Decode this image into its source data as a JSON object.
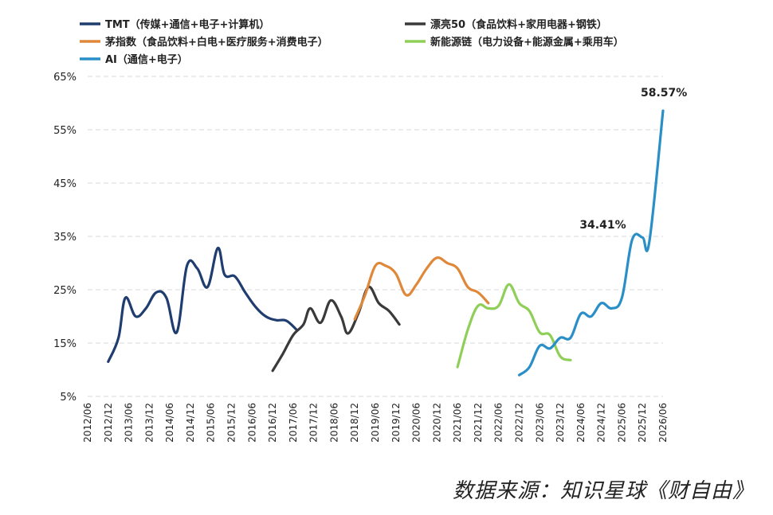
{
  "chart_data": {
    "type": "line",
    "ylim": [
      5,
      65
    ],
    "yticks": [
      "5%",
      "15%",
      "25%",
      "35%",
      "45%",
      "55%",
      "65%"
    ],
    "ytick_values": [
      5,
      15,
      25,
      35,
      45,
      55,
      65
    ],
    "x_categories": [
      "2012/06",
      "2012/12",
      "2013/06",
      "2013/12",
      "2014/06",
      "2014/12",
      "2015/06",
      "2015/12",
      "2016/06",
      "2016/12",
      "2017/06",
      "2017/12",
      "2018/06",
      "2018/12",
      "2019/06",
      "2019/12",
      "2020/06",
      "2020/12",
      "2021/06",
      "2021/12",
      "2022/06",
      "2022/12",
      "2023/06",
      "2023/12",
      "2024/06",
      "2024/12",
      "2025/06",
      "2025/12",
      "2026/06"
    ],
    "grid": "horizontal-dashed",
    "legend_position": "top",
    "series": [
      {
        "name": "TMT（传媒+通信+电子+计算机）",
        "color": "#1f3d6e",
        "points": [
          [
            "2012/12",
            11.5
          ],
          [
            "2013/03",
            16
          ],
          [
            "2013/05",
            23.5
          ],
          [
            "2013/08",
            20
          ],
          [
            "2013/11",
            21.5
          ],
          [
            "2014/02",
            24.5
          ],
          [
            "2014/05",
            23.5
          ],
          [
            "2014/08",
            17
          ],
          [
            "2014/11",
            29.5
          ],
          [
            "2015/02",
            29
          ],
          [
            "2015/05",
            25.5
          ],
          [
            "2015/08",
            32.8
          ],
          [
            "2015/10",
            27.8
          ],
          [
            "2016/01",
            27.5
          ],
          [
            "2016/04",
            24.5
          ],
          [
            "2016/07",
            21.8
          ],
          [
            "2016/10",
            20
          ],
          [
            "2017/01",
            19.3
          ],
          [
            "2017/04",
            19.2
          ],
          [
            "2017/07",
            17.5
          ]
        ]
      },
      {
        "name": "漂亮50（食品饮料+家用电器+钢铁）",
        "color": "#3a3a3a",
        "points": [
          [
            "2016/12",
            9.8
          ],
          [
            "2017/03",
            13
          ],
          [
            "2017/06",
            16.5
          ],
          [
            "2017/09",
            18.5
          ],
          [
            "2017/11",
            21.5
          ],
          [
            "2018/02",
            18.8
          ],
          [
            "2018/05",
            23
          ],
          [
            "2018/08",
            20
          ],
          [
            "2018/10",
            16.8
          ],
          [
            "2019/01",
            20.5
          ],
          [
            "2019/04",
            25.5
          ],
          [
            "2019/07",
            22.5
          ],
          [
            "2019/10",
            21
          ],
          [
            "2020/01",
            18.5
          ]
        ]
      },
      {
        "name": "茅指数（食品饮料+白电+医疗服务+消费电子）",
        "color": "#e0883a",
        "points": [
          [
            "2018/12",
            19.5
          ],
          [
            "2019/03",
            24
          ],
          [
            "2019/06",
            29.5
          ],
          [
            "2019/09",
            29.5
          ],
          [
            "2019/12",
            28
          ],
          [
            "2020/03",
            24
          ],
          [
            "2020/06",
            26
          ],
          [
            "2020/09",
            29
          ],
          [
            "2020/12",
            31
          ],
          [
            "2021/03",
            30
          ],
          [
            "2021/06",
            29
          ],
          [
            "2021/09",
            25.5
          ],
          [
            "2021/12",
            24.5
          ],
          [
            "2022/03",
            22.5
          ]
        ]
      },
      {
        "name": "新能源链（电力设备+能源金属+乘用车）",
        "color": "#8fcf58",
        "points": [
          [
            "2021/06",
            10.5
          ],
          [
            "2021/09",
            17.5
          ],
          [
            "2021/12",
            22
          ],
          [
            "2022/03",
            21.5
          ],
          [
            "2022/06",
            22
          ],
          [
            "2022/09",
            26
          ],
          [
            "2022/12",
            22.5
          ],
          [
            "2023/03",
            21
          ],
          [
            "2023/06",
            17
          ],
          [
            "2023/09",
            16.5
          ],
          [
            "2023/12",
            12.5
          ],
          [
            "2024/03",
            11.8
          ]
        ]
      },
      {
        "name": "AI（通信+电子）",
        "color": "#2a8fc7",
        "points": [
          [
            "2022/12",
            9
          ],
          [
            "2023/03",
            10.5
          ],
          [
            "2023/06",
            14.5
          ],
          [
            "2023/09",
            14
          ],
          [
            "2023/12",
            16
          ],
          [
            "2024/03",
            16
          ],
          [
            "2024/06",
            20.5
          ],
          [
            "2024/09",
            20
          ],
          [
            "2024/12",
            22.5
          ],
          [
            "2025/03",
            21.5
          ],
          [
            "2025/06",
            23.5
          ],
          [
            "2025/09",
            34.41
          ],
          [
            "2025/12",
            34.8
          ],
          [
            "2026/02",
            34
          ],
          [
            "2026/06",
            58.57
          ]
        ]
      }
    ],
    "annotations": [
      {
        "text": "34.41%",
        "x": "2025/09",
        "y": 34.41
      },
      {
        "text": "58.57%",
        "x": "2026/06",
        "y": 58.57
      }
    ]
  },
  "source": "数据来源：知识星球《财自由》"
}
